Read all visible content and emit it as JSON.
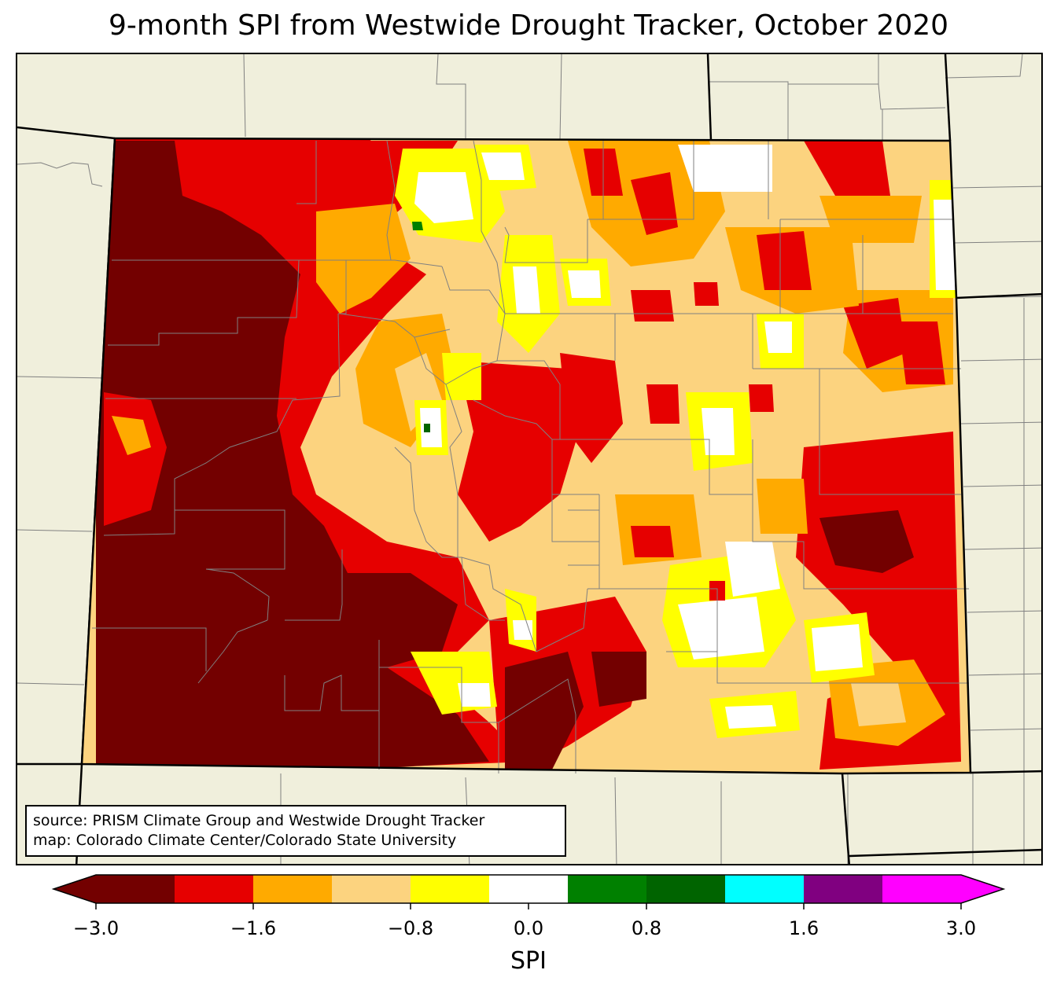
{
  "title": "9-month SPI from Westwide Drought Tracker, October 2020",
  "source": {
    "line1": "source: PRISM Climate Group and Westwide Drought Tracker",
    "line2": "map: Colorado Climate Center/Colorado State University"
  },
  "colorbar": {
    "label": "SPI",
    "range": [
      -3.0,
      3.0
    ],
    "extend": "both",
    "bins": [
      {
        "from": -3.0,
        "to": -2.4,
        "color": "#730000"
      },
      {
        "from": -2.4,
        "to": -1.6,
        "color": "#e60000"
      },
      {
        "from": -1.6,
        "to": -1.2,
        "color": "#ffaa00"
      },
      {
        "from": -1.2,
        "to": -0.8,
        "color": "#fcd37f"
      },
      {
        "from": -0.8,
        "to": -0.4,
        "color": "#ffff00"
      },
      {
        "from": -0.4,
        "to": 0.4,
        "color": "#ffffff"
      },
      {
        "from": 0.4,
        "to": 0.8,
        "color": "#008000"
      },
      {
        "from": 0.8,
        "to": 1.2,
        "color": "#006400"
      },
      {
        "from": 1.2,
        "to": 1.6,
        "color": "#00ffff"
      },
      {
        "from": 1.6,
        "to": 2.4,
        "color": "#800080"
      },
      {
        "from": 2.4,
        "to": 3.0,
        "color": "#ff00ff"
      }
    ],
    "below_color": "#730000",
    "above_color": "#ff00ff",
    "ticks": [
      {
        "value": -3.0,
        "label": "−3.0"
      },
      {
        "value": -1.6,
        "label": "−1.6"
      },
      {
        "value": -0.8,
        "label": "−0.8"
      },
      {
        "value": 0.0,
        "label": "0.0"
      },
      {
        "value": 0.8,
        "label": "0.8"
      },
      {
        "value": 1.6,
        "label": "1.6"
      },
      {
        "value": 3.0,
        "label": "3.0"
      }
    ]
  },
  "map": {
    "region": "Colorado",
    "land_color": "#f0efdc",
    "state_border_color": "#000000",
    "county_border_color": "#808080"
  }
}
